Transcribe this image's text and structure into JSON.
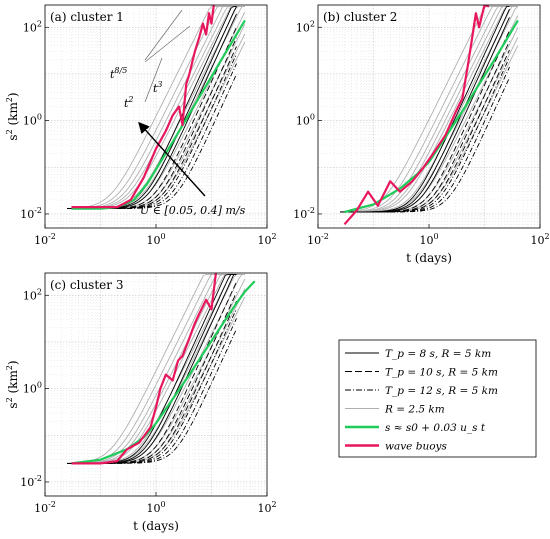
{
  "chart_data": [
    {
      "type": "line",
      "panel_label": "(a) cluster 1",
      "xscale": "log",
      "yscale": "log",
      "xlim": [
        0.01,
        100
      ],
      "ylim": [
        0.005,
        300
      ],
      "xticks": [
        0.01,
        1,
        100
      ],
      "xticklabels": [
        "10^-2",
        "10^0",
        "10^2"
      ],
      "yticks": [
        0.01,
        1,
        100
      ],
      "yticklabels": [
        "10^-2",
        "10^0",
        "10^2"
      ],
      "xlabel": "",
      "ylabel": "s^2 (km^2)",
      "grid": "on",
      "annotations": {
        "slope_labels": [
          "t^{8/5}",
          "t^3",
          "t^2"
        ],
        "arrow_text": "U ∈ [0.05, 0.4] m/s"
      },
      "series": [
        {
          "name": "wave buoys",
          "color": "#e8175d",
          "x": [
            0.03,
            0.1,
            0.2,
            0.35,
            0.6,
            1,
            1.5,
            2,
            2.6,
            3,
            3.5,
            4,
            5,
            6,
            7,
            8,
            9,
            10,
            11
          ],
          "y": [
            0.014,
            0.014,
            0.014,
            0.02,
            0.06,
            0.25,
            0.6,
            1.3,
            2,
            0.8,
            6,
            10,
            30,
            60,
            120,
            70,
            200,
            120,
            300
          ]
        },
        {
          "name": "s ≈ s0 + 0.03 u_s t",
          "color": "#1fcc5a",
          "x": [
            0.03,
            0.1,
            0.2,
            0.4,
            0.7,
            1,
            2,
            4,
            8,
            15,
            25,
            40
          ],
          "y": [
            0.013,
            0.013,
            0.014,
            0.02,
            0.045,
            0.09,
            0.35,
            1.4,
            5.6,
            20,
            55,
            140
          ]
        }
      ]
    },
    {
      "type": "line",
      "panel_label": "(b) cluster 2",
      "xscale": "log",
      "yscale": "log",
      "xlim": [
        0.01,
        100
      ],
      "ylim": [
        0.005,
        300
      ],
      "xticks": [
        0.01,
        1,
        100
      ],
      "xticklabels": [
        "10^-2",
        "10^0",
        "10^2"
      ],
      "yticks": [
        0.01,
        1,
        100
      ],
      "yticklabels": [
        "10^-2",
        "10^0",
        "10^2"
      ],
      "xlabel": "t (days)",
      "ylabel": "",
      "grid": "on",
      "series": [
        {
          "name": "wave buoys",
          "color": "#e8175d",
          "x": [
            0.03,
            0.05,
            0.08,
            0.12,
            0.2,
            0.3,
            0.5,
            0.8,
            1.2,
            2,
            3,
            4,
            5,
            6,
            7,
            8,
            10,
            12
          ],
          "y": [
            0.006,
            0.012,
            0.03,
            0.015,
            0.05,
            0.03,
            0.05,
            0.1,
            0.2,
            0.5,
            1.5,
            3,
            15,
            60,
            200,
            100,
            300,
            280
          ]
        },
        {
          "name": "s ≈ s0 + 0.03 u_s t",
          "color": "#1fcc5a",
          "x": [
            0.03,
            0.1,
            0.3,
            0.6,
            1,
            2,
            4,
            8,
            15,
            25,
            40
          ],
          "y": [
            0.011,
            0.016,
            0.035,
            0.07,
            0.13,
            0.45,
            1.6,
            6,
            20,
            55,
            140
          ]
        }
      ]
    },
    {
      "type": "line",
      "panel_label": "(c) cluster 3",
      "xscale": "log",
      "yscale": "log",
      "xlim": [
        0.01,
        100
      ],
      "ylim": [
        0.005,
        300
      ],
      "xticks": [
        0.01,
        1,
        100
      ],
      "xticklabels": [
        "10^-2",
        "10^0",
        "10^2"
      ],
      "yticks": [
        0.01,
        1,
        100
      ],
      "yticklabels": [
        "10^-2",
        "10^0",
        "10^2"
      ],
      "xlabel": "t (days)",
      "ylabel": "s^2 (km^2)",
      "grid": "on",
      "series": [
        {
          "name": "wave buoys",
          "color": "#e8175d",
          "x": [
            0.03,
            0.1,
            0.2,
            0.3,
            0.5,
            0.8,
            1,
            1.2,
            1.5,
            2,
            2.5,
            3,
            4,
            5,
            6,
            8,
            10,
            12
          ],
          "y": [
            0.025,
            0.025,
            0.028,
            0.05,
            0.07,
            0.15,
            0.4,
            1,
            2,
            1.5,
            4,
            5,
            12,
            25,
            40,
            80,
            50,
            300
          ]
        },
        {
          "name": "s ≈ s0 + 0.03 u_s t",
          "color": "#1fcc5a",
          "x": [
            0.03,
            0.1,
            0.3,
            0.6,
            1,
            2,
            4,
            8,
            15,
            25,
            40,
            60
          ],
          "y": [
            0.025,
            0.03,
            0.05,
            0.09,
            0.18,
            0.6,
            2,
            7,
            22,
            55,
            120,
            200
          ]
        }
      ]
    }
  ],
  "legend": {
    "placement": "bottom-right",
    "entries": [
      {
        "label": "T_p = 8 s, R = 5 km",
        "color": "#000000",
        "style": "solid"
      },
      {
        "label": "T_p = 10 s, R = 5 km",
        "color": "#000000",
        "style": "dashed"
      },
      {
        "label": "T_p = 12 s, R = 5 km",
        "color": "#000000",
        "style": "dashdot"
      },
      {
        "label": "R = 2.5 km",
        "color": "#b0b0b0",
        "style": "solid"
      },
      {
        "label": "s ≈ s0 + 0.03 u_s t",
        "color": "#1fcc5a",
        "style": "solid-thick"
      },
      {
        "label": "wave buoys",
        "color": "#e8175d",
        "style": "solid-thick"
      }
    ]
  },
  "colors": {
    "model_black": "#000000",
    "model_grey": "#b0b0b0",
    "fit_green": "#1fcc5a",
    "buoys_red": "#e8175d"
  }
}
